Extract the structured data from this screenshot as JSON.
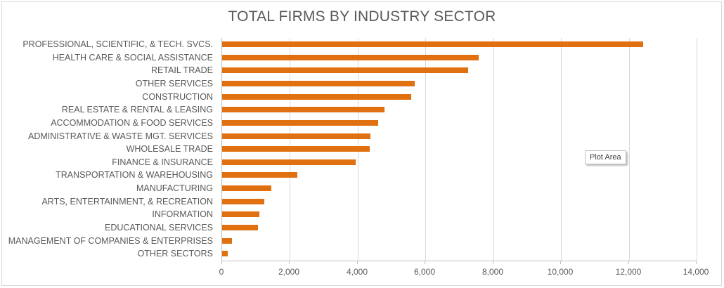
{
  "chart_data": {
    "type": "bar",
    "orientation": "horizontal",
    "title": "TOTAL FIRMS BY INDUSTRY SECTOR",
    "xlabel": "",
    "ylabel": "",
    "xlim": [
      0,
      14000
    ],
    "x_ticks": [
      "0",
      "2,000",
      "4,000",
      "6,000",
      "8,000",
      "10,000",
      "12,000",
      "14,000"
    ],
    "grid": true,
    "legend": null,
    "bar_color": "#E07010",
    "categories": [
      "PROFESSIONAL, SCIENTIFIC, & TECH. SVCS.",
      "HEALTH CARE & SOCIAL ASSISTANCE",
      "RETAIL TRADE",
      "OTHER SERVICES",
      "CONSTRUCTION",
      "REAL ESTATE & RENTAL & LEASING",
      "ACCOMMODATION & FOOD SERVICES",
      "ADMINISTRATIVE & WASTE MGT. SERVICES",
      "WHOLESALE TRADE",
      "FINANCE & INSURANCE",
      "TRANSPORTATION & WAREHOUSING",
      "MANUFACTURING",
      "ARTS, ENTERTAINMENT, & RECREATION",
      "INFORMATION",
      "EDUCATIONAL SERVICES",
      "MANAGEMENT OF COMPANIES & ENTERPRISES",
      "OTHER SECTORS"
    ],
    "values": [
      12430,
      7580,
      7250,
      5690,
      5570,
      4800,
      4610,
      4380,
      4360,
      3950,
      2210,
      1460,
      1235,
      1090,
      1050,
      300,
      175
    ]
  },
  "tooltip": {
    "text": "Plot Area"
  }
}
